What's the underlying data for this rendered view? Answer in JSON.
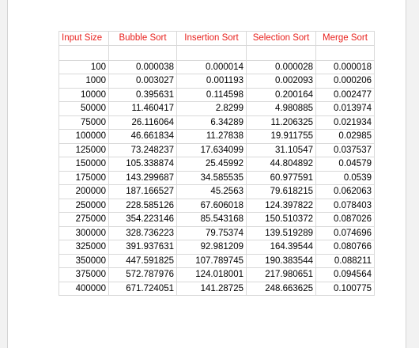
{
  "table": {
    "headers": [
      "Input Size",
      "Bubble Sort",
      "Insertion Sort",
      "Selection Sort",
      "Merge Sort"
    ],
    "rows": [
      [
        "100",
        "0.000038",
        "0.000014",
        "0.000028",
        "0.000018"
      ],
      [
        "1000",
        "0.003027",
        "0.001193",
        "0.002093",
        "0.000206"
      ],
      [
        "10000",
        "0.395631",
        "0.114598",
        "0.200164",
        "0.002477"
      ],
      [
        "50000",
        "11.460417",
        "2.8299",
        "4.980885",
        "0.013974"
      ],
      [
        "75000",
        "26.116064",
        "6.34289",
        "11.206325",
        "0.021934"
      ],
      [
        "100000",
        "46.661834",
        "11.27838",
        "19.911755",
        "0.02985"
      ],
      [
        "125000",
        "73.248237",
        "17.634099",
        "31.10547",
        "0.037537"
      ],
      [
        "150000",
        "105.338874",
        "25.45992",
        "44.804892",
        "0.04579"
      ],
      [
        "175000",
        "143.299687",
        "34.585535",
        "60.977591",
        "0.0539"
      ],
      [
        "200000",
        "187.166527",
        "45.2563",
        "79.618215",
        "0.062063"
      ],
      [
        "250000",
        "228.585126",
        "67.606018",
        "124.397822",
        "0.078403"
      ],
      [
        "275000",
        "354.223146",
        "85.543168",
        "150.510372",
        "0.087026"
      ],
      [
        "300000",
        "328.736223",
        "79.75374",
        "139.519289",
        "0.074696"
      ],
      [
        "325000",
        "391.937631",
        "92.981209",
        "164.39544",
        "0.080766"
      ],
      [
        "350000",
        "447.591825",
        "107.789745",
        "190.383544",
        "0.088211"
      ],
      [
        "375000",
        "572.787976",
        "124.018001",
        "217.980651",
        "0.094564"
      ],
      [
        "400000",
        "671.724051",
        "141.28725",
        "248.663625",
        "0.100775"
      ]
    ]
  },
  "colors": {
    "header_text": "#e8211d",
    "gridline": "#d9d9d9",
    "background": "#f2f2f2",
    "sheet": "#ffffff"
  }
}
